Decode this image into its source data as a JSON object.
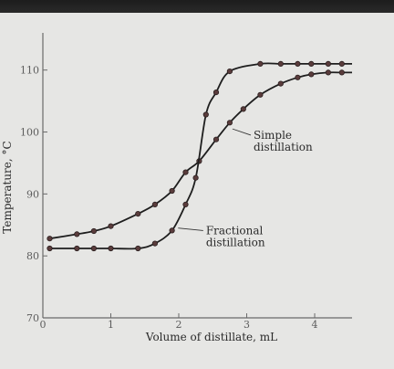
{
  "chart_data": {
    "type": "line",
    "title": "",
    "xlabel": "Volume of distillate, mL",
    "ylabel": "Temperature, °C",
    "xlim": [
      0,
      4.55
    ],
    "ylim": [
      70,
      116
    ],
    "x_ticks": [
      {
        "value": 0,
        "label": "0"
      },
      {
        "value": 1,
        "label": "1"
      },
      {
        "value": 2,
        "label": "2"
      },
      {
        "value": 3,
        "label": "3"
      },
      {
        "value": 4,
        "label": "4"
      }
    ],
    "y_ticks": [
      {
        "value": 70,
        "label": "70"
      },
      {
        "value": 80,
        "label": "80"
      },
      {
        "value": 90,
        "label": "90"
      },
      {
        "value": 100,
        "label": "100"
      },
      {
        "value": 110,
        "label": "110"
      }
    ],
    "grid": false,
    "series": [
      {
        "name": "Simple distillation",
        "annotation_lines": [
          "Simple",
          "distillation"
        ],
        "label_at": {
          "x": 3.1,
          "y": 98.9
        },
        "pointer_at": {
          "x": 2.75,
          "y": 100.5
        },
        "color": "#1e1e1e",
        "x": [
          0.1,
          0.5,
          0.75,
          1.0,
          1.4,
          1.65,
          1.9,
          2.1,
          2.3,
          2.55,
          2.75,
          2.95,
          3.2,
          3.5,
          3.75,
          3.95,
          4.2,
          4.4
        ],
        "y": [
          82.8,
          83.5,
          84.0,
          84.8,
          86.8,
          88.3,
          90.5,
          93.5,
          95.3,
          98.8,
          101.5,
          103.7,
          106.0,
          107.8,
          108.8,
          109.3,
          109.6,
          109.6
        ]
      },
      {
        "name": "Fractional distillation",
        "annotation_lines": [
          "Fractional",
          "distillation"
        ],
        "label_at": {
          "x": 2.4,
          "y": 83.5
        },
        "pointer_at": {
          "x": 1.95,
          "y": 84.5
        },
        "color": "#1e1e1e",
        "x": [
          0.1,
          0.5,
          0.75,
          1.0,
          1.4,
          1.65,
          1.9,
          2.1,
          2.25,
          2.4,
          2.55,
          2.75,
          3.2,
          3.5,
          3.75,
          3.95,
          4.2,
          4.4
        ],
        "y": [
          81.2,
          81.2,
          81.2,
          81.2,
          81.2,
          82.0,
          84.1,
          88.3,
          92.6,
          102.8,
          106.4,
          109.8,
          111.0,
          111.0,
          111.0,
          111.0,
          111.0,
          111.0
        ]
      }
    ]
  },
  "colors": {
    "axis": "#6a6a6a",
    "line": "#1e1e1e",
    "marker_fill": "#5a3c3c",
    "marker_stroke": "#2a1f1f"
  }
}
